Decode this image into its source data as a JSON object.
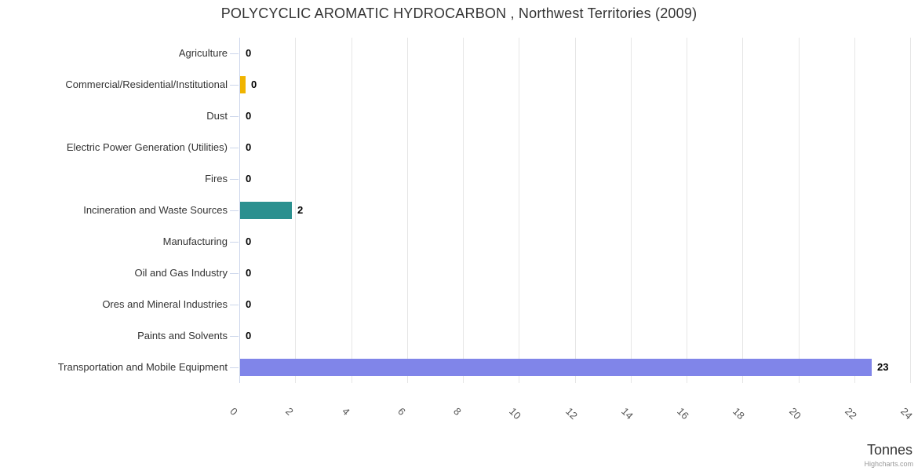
{
  "credits_label": "Highcharts.com",
  "chart_data": {
    "type": "bar",
    "orientation": "horizontal",
    "title": "POLYCYCLIC AROMATIC HYDROCARBON , Northwest Territories (2009)",
    "xlabel": "Tonnes",
    "ylabel": "",
    "xlim": [
      0,
      24
    ],
    "x_ticks": [
      0,
      2,
      4,
      6,
      8,
      10,
      12,
      14,
      16,
      18,
      20,
      22,
      24
    ],
    "grid": true,
    "legend": "none",
    "categories": [
      "Agriculture",
      "Commercial/Residential/Institutional",
      "Dust",
      "Electric Power Generation (Utilities)",
      "Fires",
      "Incineration and Waste Sources",
      "Manufacturing",
      "Oil and Gas Industry",
      "Ores and Mineral Industries",
      "Paints and Solvents",
      "Transportation and Mobile Equipment"
    ],
    "values": [
      0,
      0.2,
      0,
      0,
      0,
      1.85,
      0,
      0,
      0,
      0,
      22.6
    ],
    "value_labels": [
      "0",
      "0",
      "0",
      "0",
      "0",
      "2",
      "0",
      "0",
      "0",
      "0",
      "23"
    ],
    "bar_colors": [
      null,
      "#f0b400",
      null,
      null,
      null,
      "#2b908f",
      null,
      null,
      null,
      null,
      "#8085e9"
    ],
    "colors": {
      "grid": "#e6e6e6",
      "axis_line": "#ccd6eb",
      "category_tick": "#ccd6eb",
      "category_label": "#333333",
      "tick_label": "#555555",
      "data_label": "#000000",
      "title": "#333333"
    }
  }
}
